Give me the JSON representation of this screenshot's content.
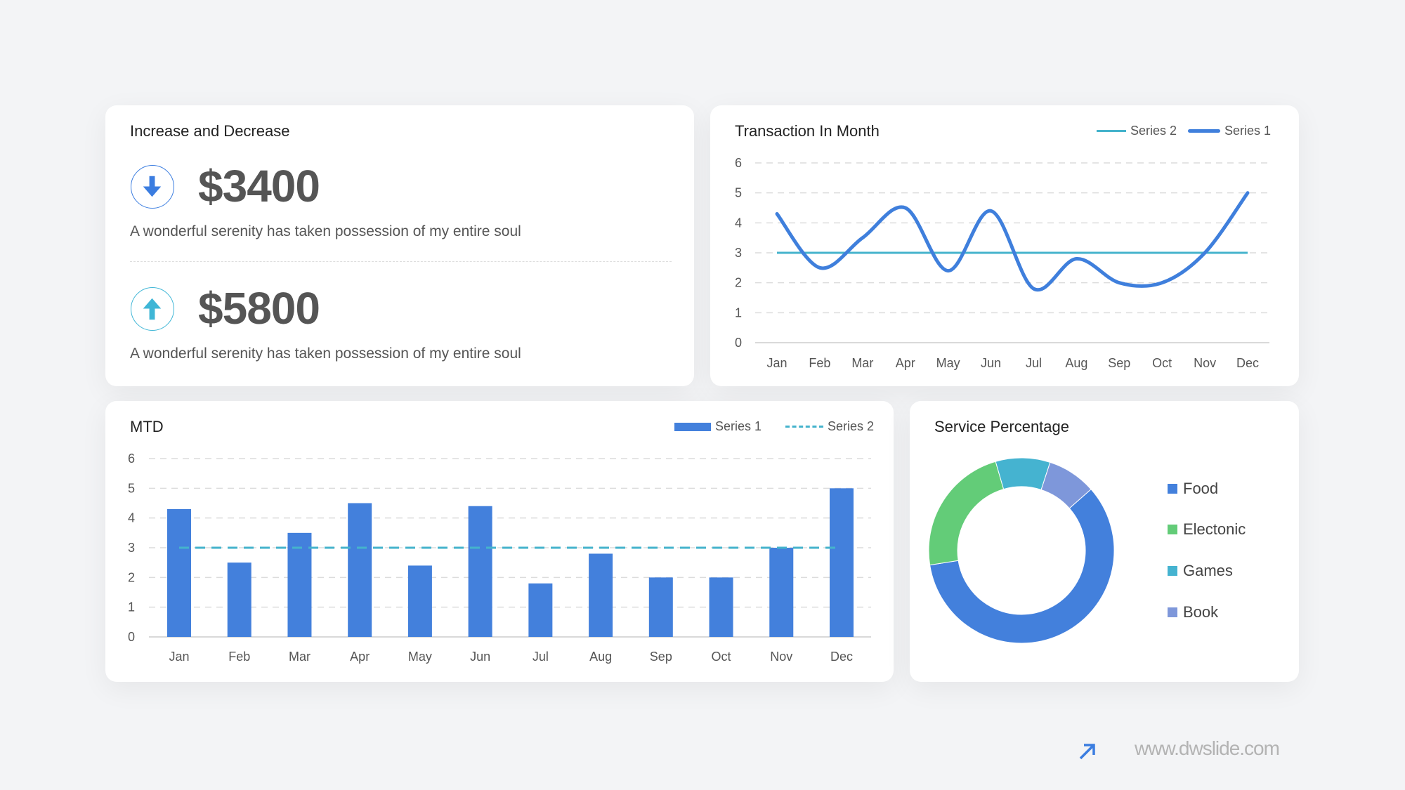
{
  "summary": {
    "title": "Increase and Decrease",
    "items": [
      {
        "icon": "arrow-down-icon",
        "value": "$3400",
        "description": "A wonderful serenity has taken possession of my entire soul",
        "color": "#3b7de0"
      },
      {
        "icon": "arrow-up-icon",
        "value": "$5800",
        "description": "A wonderful serenity has taken possession of my entire soul",
        "color": "#3fb6d6"
      }
    ]
  },
  "chart_data": [
    {
      "type": "line",
      "title": "Transaction In Month",
      "categories": [
        "Jan",
        "Feb",
        "Mar",
        "Apr",
        "May",
        "Jun",
        "Jul",
        "Aug",
        "Sep",
        "Oct",
        "Nov",
        "Dec"
      ],
      "series": [
        {
          "name": "Series 1",
          "values": [
            4.3,
            2.5,
            3.5,
            4.5,
            2.4,
            4.4,
            1.8,
            2.8,
            2.0,
            2.0,
            3.0,
            5.0
          ],
          "color": "#3f7fdc",
          "smooth": true
        },
        {
          "name": "Series 2",
          "values": [
            3,
            3,
            3,
            3,
            3,
            3,
            3,
            3,
            3,
            3,
            3,
            3
          ],
          "color": "#45b3cc"
        }
      ],
      "legend_order": [
        "Series 2",
        "Series 1"
      ],
      "ylim": [
        0,
        6
      ],
      "yticks": [
        "0",
        "1",
        "2",
        "3",
        "4",
        "5",
        "6"
      ],
      "grid": true,
      "legend": "top-right"
    },
    {
      "type": "bar",
      "title": "MTD",
      "categories": [
        "Jan",
        "Feb",
        "Mar",
        "Apr",
        "May",
        "Jun",
        "Jul",
        "Aug",
        "Sep",
        "Oct",
        "Nov",
        "Dec"
      ],
      "series": [
        {
          "name": "Series 1",
          "values": [
            4.3,
            2.5,
            3.5,
            4.5,
            2.4,
            4.4,
            1.8,
            2.8,
            2.0,
            2.0,
            3.0,
            5.0
          ],
          "color": "#4380dc"
        },
        {
          "name": "Series 2",
          "values": [
            3,
            3,
            3,
            3,
            3,
            3,
            3,
            3,
            3,
            3,
            3,
            3
          ],
          "color": "#45b3cc",
          "style": "dashed-line"
        }
      ],
      "ylim": [
        0,
        6
      ],
      "yticks": [
        "0",
        "1",
        "2",
        "3",
        "4",
        "5",
        "6"
      ],
      "grid": true,
      "legend": "top-right"
    },
    {
      "type": "pie",
      "donut": true,
      "title": "Service Percentage",
      "categories": [
        "Food",
        "Electonic",
        "Games",
        "Book"
      ],
      "values": [
        59,
        23,
        9.5,
        8.5
      ],
      "colors": [
        "#4380dc",
        "#63cc78",
        "#45b3d0",
        "#7e97da"
      ],
      "legend": "right"
    }
  ],
  "watermark": {
    "text": "www.dwslide.com",
    "icon": "arrow-up-right-icon",
    "color": "#3b7de0"
  }
}
